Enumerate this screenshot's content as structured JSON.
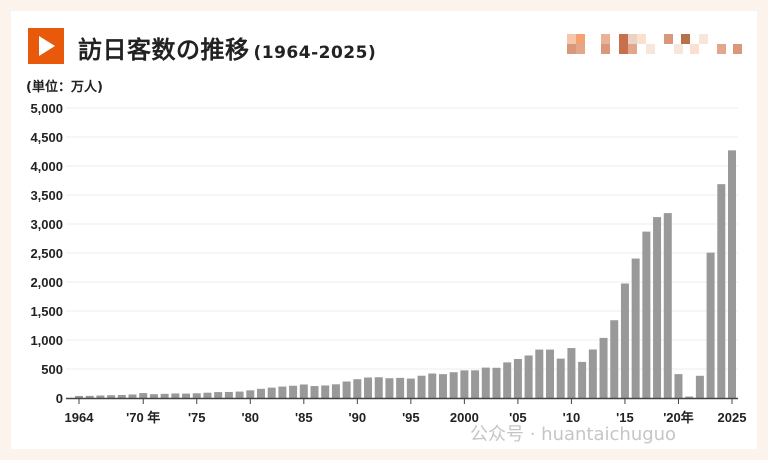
{
  "header": {
    "title": "訪日客数の推移",
    "subtitle": "(1964-2025)",
    "unit": "(単位：万人)",
    "accent": "#e8590c"
  },
  "watermark": "公众号 · huantaichuguo",
  "chart_data": {
    "type": "bar",
    "title": "訪日客数の推移 (1964-2025)",
    "ylabel": "(単位：万人)",
    "ylim": [
      0,
      5000
    ],
    "yticks": [
      "0",
      "500",
      "1,000",
      "1,500",
      "2,000",
      "2,500",
      "3,000",
      "3,500",
      "4,000",
      "4,500",
      "5,000"
    ],
    "xticks": [
      {
        "year": 1964,
        "label": "1964"
      },
      {
        "year": 1970,
        "label": "'70 年"
      },
      {
        "year": 1975,
        "label": "'75"
      },
      {
        "year": 1980,
        "label": "'80"
      },
      {
        "year": 1985,
        "label": "'85"
      },
      {
        "year": 1990,
        "label": "'90"
      },
      {
        "year": 1995,
        "label": "'95"
      },
      {
        "year": 2000,
        "label": "2000"
      },
      {
        "year": 2005,
        "label": "'05"
      },
      {
        "year": 2010,
        "label": "'10"
      },
      {
        "year": 2015,
        "label": "'15"
      },
      {
        "year": 2020,
        "label": "'20年"
      },
      {
        "year": 2025,
        "label": "2025"
      }
    ],
    "grid": true,
    "bar_color": "#999999",
    "x": [
      1964,
      1965,
      1966,
      1967,
      1968,
      1969,
      1970,
      1971,
      1972,
      1973,
      1974,
      1975,
      1976,
      1977,
      1978,
      1979,
      1980,
      1981,
      1982,
      1983,
      1984,
      1985,
      1986,
      1987,
      1988,
      1989,
      1990,
      1991,
      1992,
      1993,
      1994,
      1995,
      1996,
      1997,
      1998,
      1999,
      2000,
      2001,
      2002,
      2003,
      2004,
      2005,
      2006,
      2007,
      2008,
      2009,
      2010,
      2011,
      2012,
      2013,
      2014,
      2015,
      2016,
      2017,
      2018,
      2019,
      2020,
      2021,
      2022,
      2023,
      2024,
      2025
    ],
    "values": [
      35,
      37,
      43,
      48,
      52,
      61,
      85,
      66,
      72,
      78,
      76,
      81,
      91,
      102,
      104,
      111,
      132,
      158,
      179,
      197,
      211,
      233,
      206,
      216,
      236,
      284,
      324,
      353,
      358,
      341,
      347,
      335,
      384,
      422,
      411,
      444,
      476,
      477,
      524,
      521,
      614,
      673,
      733,
      835,
      835,
      679,
      861,
      622,
      836,
      1036,
      1341,
      1974,
      2404,
      2869,
      3119,
      3188,
      412,
      25,
      383,
      2507,
      3687,
      4270
    ]
  }
}
